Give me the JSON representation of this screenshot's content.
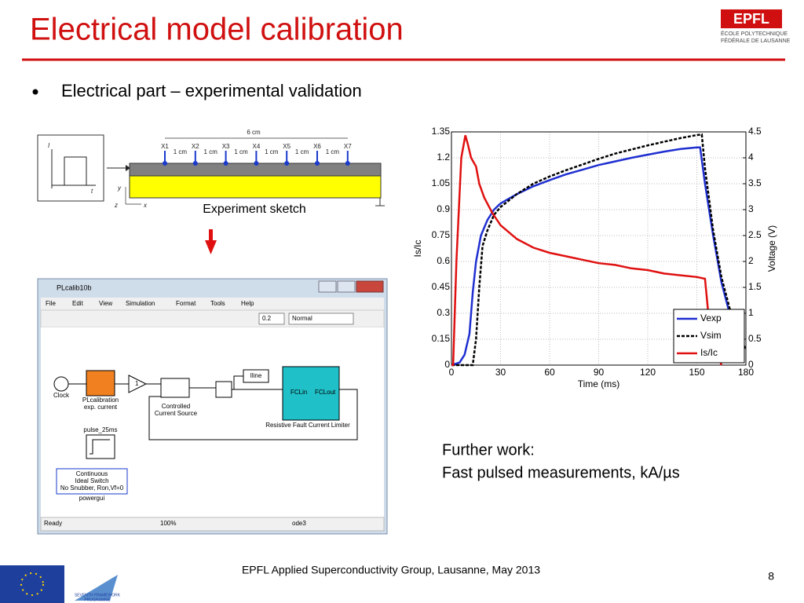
{
  "header": {
    "title": "Electrical model calibration",
    "logo": "EPFL",
    "logo_subtitle": [
      "ÉCOLE POLYTECHNIQUE",
      "FÉDÉRALE DE LAUSANNE"
    ]
  },
  "bullet": "Electrical part – experimental validation",
  "sketch": {
    "total_length": "6 cm",
    "positions": [
      "X1",
      "X2",
      "X3",
      "X4",
      "X5",
      "X6",
      "X7"
    ],
    "spacings": [
      "1 cm",
      "1 cm",
      "1 cm",
      "1 cm",
      "1 cm",
      "1 cm"
    ],
    "pulse_axes": [
      "I",
      "t"
    ],
    "coord_axes": [
      "y",
      "z",
      "x"
    ],
    "caption": "Experiment sketch"
  },
  "simulink": {
    "window_title": "PLcalib10b",
    "menu": [
      "File",
      "Edit",
      "View",
      "Simulation",
      "Format",
      "Tools",
      "Help"
    ],
    "stop_time": "0.2",
    "mode": "Normal",
    "blocks": {
      "clock": "Clock",
      "source": [
        "PLcalibration",
        "exp. current"
      ],
      "gain": "1",
      "current_source": [
        "Controlled",
        "Current Source"
      ],
      "iline": "Iline",
      "fcl_in": "FCLin",
      "fcl_out": "FCLout",
      "fcl": "Resistive Fault Current Limiter",
      "pulse": "pulse_25ms",
      "powergui": [
        "Continuous",
        "Ideal Switch",
        "No Snubber, Ron,Vf=0"
      ],
      "powergui_label": "powergui"
    },
    "status": [
      "Ready",
      "100%",
      "ode3"
    ]
  },
  "chart_data": {
    "type": "line",
    "xlabel": "Time (ms)",
    "ylabel": "Is/Ic",
    "y2label": "Voltage (V)",
    "xlim": [
      0,
      180
    ],
    "xticks": [
      0,
      30,
      60,
      90,
      120,
      150,
      180
    ],
    "ylim": [
      0,
      1.35
    ],
    "yticks": [
      0,
      0.15,
      0.3,
      0.45,
      0.6,
      0.75,
      0.9,
      1.05,
      1.2,
      1.35
    ],
    "y2lim": [
      0,
      4.5
    ],
    "y2ticks": [
      0,
      0.5,
      1,
      1.5,
      2,
      2.5,
      3,
      3.5,
      4,
      4.5
    ],
    "grid": true,
    "legend": "lower right",
    "series": [
      {
        "name": "Vexp",
        "color": "#1f2fd0",
        "dash": "solid",
        "axis": "y2",
        "x": [
          0,
          5,
          8,
          11,
          13,
          15,
          18,
          22,
          26,
          30,
          40,
          50,
          60,
          70,
          80,
          90,
          100,
          110,
          120,
          130,
          140,
          150,
          152,
          155,
          160,
          165,
          170,
          175,
          178
        ],
        "values": [
          0,
          0.05,
          0.2,
          0.6,
          1.4,
          2.0,
          2.5,
          2.8,
          3.0,
          3.12,
          3.3,
          3.45,
          3.57,
          3.68,
          3.77,
          3.86,
          3.93,
          4.0,
          4.06,
          4.12,
          4.17,
          4.2,
          4.2,
          3.5,
          2.5,
          1.6,
          1.0,
          0.5,
          0.3
        ]
      },
      {
        "name": "Vsim",
        "color": "#000000",
        "dash": "dashed",
        "axis": "y2",
        "x": [
          0,
          13,
          15,
          17,
          19,
          22,
          26,
          30,
          40,
          50,
          60,
          70,
          80,
          90,
          100,
          110,
          120,
          130,
          140,
          150,
          153,
          155,
          160,
          165,
          170,
          175,
          180
        ],
        "values": [
          0,
          0,
          0.5,
          1.5,
          2.3,
          2.6,
          2.9,
          3.05,
          3.3,
          3.5,
          3.64,
          3.76,
          3.87,
          3.98,
          4.08,
          4.16,
          4.24,
          4.31,
          4.38,
          4.44,
          4.45,
          3.8,
          2.6,
          1.7,
          1.1,
          0.6,
          0.3
        ]
      },
      {
        "name": "Is/Ic",
        "color": "#e01010",
        "dash": "solid",
        "x": [
          0,
          1,
          3,
          6,
          8.5,
          10,
          12,
          15,
          17,
          20,
          25,
          30,
          40,
          50,
          60,
          70,
          80,
          90,
          100,
          110,
          120,
          130,
          140,
          150,
          155,
          157,
          162,
          165
        ],
        "values": [
          0,
          0,
          0.6,
          1.2,
          1.33,
          1.28,
          1.2,
          1.15,
          1.05,
          0.97,
          0.88,
          0.81,
          0.73,
          0.68,
          0.65,
          0.63,
          0.61,
          0.59,
          0.58,
          0.56,
          0.55,
          0.53,
          0.52,
          0.51,
          0.5,
          0.3,
          0.1,
          0
        ]
      }
    ]
  },
  "further_work": [
    "Further work:",
    "Fast pulsed measurements, kA/µs"
  ],
  "footer": {
    "text": "EPFL Applied Superconductivity Group, Lausanne, May 2013",
    "page": "8",
    "fp7": [
      "SEVENTH FRAMEWORK",
      "PROGRAMME"
    ]
  }
}
